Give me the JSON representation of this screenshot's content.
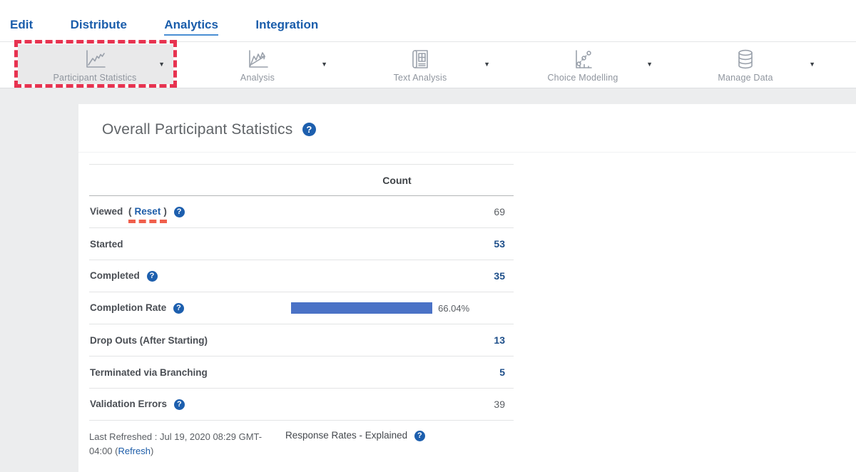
{
  "nav": {
    "items": [
      {
        "label": "Edit"
      },
      {
        "label": "Distribute"
      },
      {
        "label": "Analytics"
      },
      {
        "label": "Integration"
      }
    ],
    "active_item": "Analytics"
  },
  "toolbar": {
    "items": [
      {
        "label": "Participant Statistics",
        "icon": "line-chart-icon",
        "highlighted": true
      },
      {
        "label": "Analysis",
        "icon": "trend-chart-icon",
        "highlighted": false
      },
      {
        "label": "Text Analysis",
        "icon": "document-grid-icon",
        "highlighted": false
      },
      {
        "label": "Choice Modelling",
        "icon": "scatter-chart-icon",
        "highlighted": false
      },
      {
        "label": "Manage Data",
        "icon": "database-icon",
        "highlighted": false
      }
    ]
  },
  "icons": {
    "help_glyph": "?",
    "caret_glyph": "▼"
  },
  "main": {
    "title": "Overall Participant Statistics",
    "table": {
      "count_header": "Count",
      "rows": [
        {
          "label": "Viewed",
          "paren_open": "(",
          "link": "Reset",
          "paren_close": ")",
          "value": "69"
        },
        {
          "label": "Started",
          "value": "53"
        },
        {
          "label": "Completed",
          "value": "35"
        },
        {
          "label": "Completion Rate",
          "percent": "66.04%"
        },
        {
          "label": "Drop Outs (After Starting)",
          "value": "13"
        },
        {
          "label": "Terminated via Branching",
          "value": "5"
        },
        {
          "label": "Validation Errors",
          "value": "39"
        }
      ]
    },
    "footer": {
      "last_refreshed_prefix": "Last Refreshed : Jul 19, 2020 08:29 GMT-04:00 (",
      "refresh_link": "Refresh",
      "close_paren": ")",
      "response_rates_label": "Response Rates - Explained"
    }
  },
  "colors": {
    "nav_blue": "#1a5dab",
    "value_navy": "#1d4e89",
    "bar_blue": "#4a72c6",
    "annotation_red": "#e73350",
    "underline_red": "#f05f4c",
    "help_blue": "#1d5fae",
    "page_bg": "#ecedee"
  }
}
